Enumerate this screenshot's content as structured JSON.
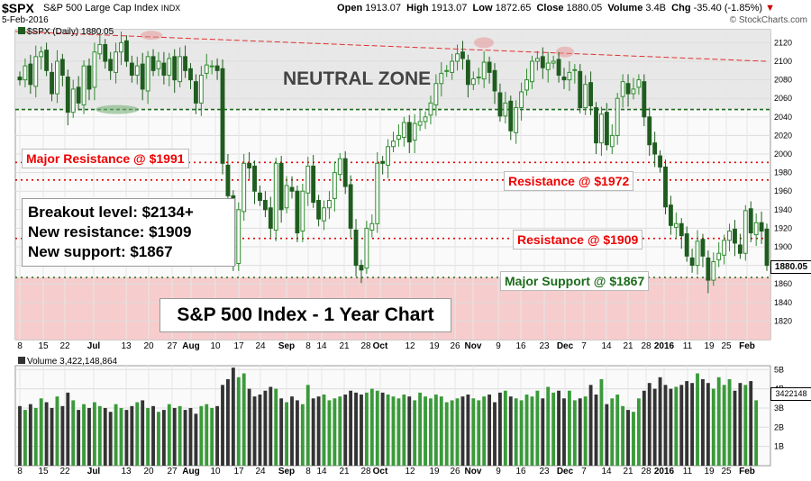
{
  "header": {
    "symbol": "$SPX",
    "description": "S&P 500 Large Cap Index",
    "exchange": "INDX",
    "date": "5-Feb-2016",
    "open_label": "Open",
    "open": "1913.07",
    "high_label": "High",
    "high": "1913.07",
    "low_label": "Low",
    "low": "1872.65",
    "close_label": "Close",
    "close": "1880.05",
    "volume_label": "Volume",
    "volume": "3.4B",
    "chg_label": "Chg",
    "chg": "-35.40 (-1.85%)",
    "brand": "© StockCharts.com"
  },
  "legend": {
    "price": "$SPX (Daily) 1880.05",
    "volume": "Volume 3,422,148,864"
  },
  "annotations": {
    "neutral_zone": "NEUTRAL ZONE",
    "major_resistance": "Major Resistance @ $1991",
    "resistance_1972": "Resistance @ $1972",
    "resistance_1909": "Resistance @ $1909",
    "major_support": "Major Support @ $1867",
    "breakout": "Breakout level: $2134+",
    "new_resistance": "New resistance: $1909",
    "new_support": "New support: $1867",
    "title": "S&P 500 Index - 1 Year Chart"
  },
  "price_tag": "1880.05",
  "volume_tag": "3422148",
  "colors": {
    "up": "#2e8b2e",
    "down": "#1f5c1f",
    "vol_up": "#3a9a3a",
    "vol_down": "#333333",
    "resistance": "#e00000",
    "support": "#1a6b1a",
    "neutral_zone_fill": "#e8e8e8",
    "support_zone_fill": "#f7cccc",
    "trendline": "#e03030"
  },
  "chart_data": {
    "type": "candlestick",
    "title": "S&P 500 Index - 1 Year Chart",
    "price_ylim": [
      1800,
      2134
    ],
    "price_ticks": [
      "1820",
      "1840",
      "1860",
      "1880",
      "1900",
      "1920",
      "1940",
      "1960",
      "1980",
      "2000",
      "2020",
      "2040",
      "2060",
      "2080",
      "2100",
      "2120"
    ],
    "volume_ticks": [
      "1B",
      "2B",
      "3B",
      "4B",
      "5B"
    ],
    "x_tick_labels": [
      "8",
      "15",
      "22",
      "Jul",
      "13",
      "20",
      "27",
      "Aug",
      "10",
      "17",
      "24",
      "Sep",
      "8",
      "14",
      "21",
      "28",
      "Oct",
      "12",
      "19",
      "26",
      "Nov",
      "9",
      "16",
      "23",
      "Dec",
      "7",
      "14",
      "21",
      "28",
      "2016",
      "11",
      "19",
      "25",
      "Feb"
    ],
    "levels": [
      {
        "name": "Major Resistance",
        "value": 1991
      },
      {
        "name": "Resistance",
        "value": 1972
      },
      {
        "name": "Resistance",
        "value": 1909
      },
      {
        "name": "Major Support",
        "value": 1867
      },
      {
        "name": "Breakout",
        "value": 2134
      },
      {
        "name": "Neutral zone floor",
        "value": 2048
      }
    ],
    "series": [
      {
        "name": "Close",
        "values": [
          2080,
          2095,
          2075,
          2105,
          2110,
          2090,
          2065,
          2100,
          2085,
          2045,
          2070,
          2055,
          2095,
          2070,
          2110,
          2118,
          2100,
          2090,
          2110,
          2120,
          2100,
          2085,
          2095,
          2070,
          2105,
          2090,
          2100,
          2085,
          2103,
          2080,
          2105,
          2090,
          2080,
          2055,
          2085,
          2096,
          2095,
          2090,
          1990,
          1955,
          1880,
          1940,
          1990,
          1985,
          1960,
          1950,
          1940,
          1920,
          1990,
          1940,
          1966,
          1960,
          1915,
          1960,
          1987,
          1948,
          1930,
          1942,
          1950,
          1980,
          1995,
          1965,
          1920,
          1880,
          1875,
          1920,
          1925,
          1990,
          1990,
          2008,
          2014,
          2020,
          2034,
          2013,
          2033,
          2035,
          2040,
          2055,
          2076,
          2087,
          2090,
          2100,
          2108,
          2103,
          2075,
          2081,
          2083,
          2099,
          2088,
          2068,
          2041,
          2055,
          2025,
          2050,
          2067,
          2080,
          2100,
          2103,
          2093,
          2098,
          2100,
          2085,
          2080,
          2088,
          2091,
          2050,
          2075,
          2052,
          2012,
          2043,
          2010,
          2020,
          2060,
          2078,
          2065,
          2070,
          2080,
          2040,
          2010,
          2000,
          1986,
          1943,
          1923,
          1925,
          1912,
          1890,
          1880,
          1906,
          1890,
          1864,
          1884,
          1893,
          1907,
          1917,
          1904,
          1893,
          1939,
          1915,
          1926,
          1917,
          1880
        ]
      },
      {
        "name": "Volume (B)",
        "values": [
          3.1,
          2.9,
          3.2,
          3.0,
          3.5,
          3.3,
          3.0,
          3.6,
          3.1,
          3.8,
          3.4,
          2.9,
          3.2,
          3.0,
          3.3,
          3.1,
          3.0,
          2.8,
          3.2,
          3.0,
          2.9,
          3.1,
          3.3,
          3.4,
          3.0,
          3.1,
          2.8,
          2.9,
          3.2,
          3.0,
          3.1,
          2.9,
          3.0,
          2.7,
          3.1,
          3.2,
          3.0,
          3.1,
          4.2,
          4.5,
          5.1,
          4.6,
          4.8,
          4.0,
          3.6,
          3.7,
          3.9,
          4.1,
          4.0,
          3.5,
          3.3,
          3.6,
          3.4,
          3.2,
          4.2,
          3.5,
          3.6,
          3.7,
          3.4,
          3.5,
          3.6,
          3.7,
          3.9,
          3.8,
          3.7,
          3.8,
          4.0,
          3.9,
          3.8,
          3.7,
          3.6,
          3.5,
          3.7,
          3.6,
          3.4,
          3.8,
          3.6,
          3.5,
          3.7,
          3.6,
          3.3,
          3.4,
          3.5,
          3.6,
          3.7,
          3.5,
          3.4,
          3.6,
          3.7,
          3.3,
          3.8,
          3.9,
          3.6,
          3.5,
          3.4,
          3.7,
          3.6,
          3.9,
          3.5,
          4.1,
          3.8,
          3.9,
          3.5,
          3.9,
          3.4,
          3.5,
          3.6,
          4.2,
          3.7,
          4.5,
          3.2,
          3.5,
          3.7,
          3.1,
          2.9,
          2.8,
          3.5,
          3.9,
          4.3,
          4.0,
          4.6,
          4.2,
          4.0,
          4.1,
          4.2,
          4.4,
          4.3,
          4.8,
          4.5,
          4.3,
          4.0,
          4.6,
          4.2,
          4.5,
          3.9,
          4.3,
          4.2,
          4.4,
          3.4
        ]
      }
    ]
  }
}
